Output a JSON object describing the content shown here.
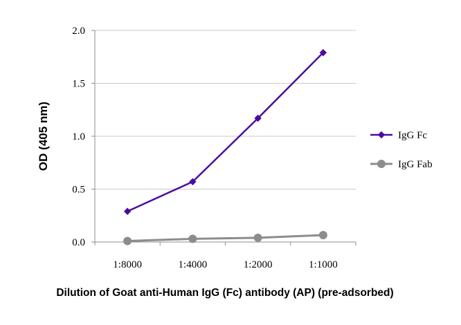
{
  "chart_data": {
    "type": "line",
    "title": "",
    "xlabel": "Dilution of Goat anti-Human IgG (Fc) antibody (AP) (pre-adsorbed)",
    "ylabel": "OD (405 nm)",
    "categories": [
      "1:8000",
      "1:4000",
      "1:2000",
      "1:1000"
    ],
    "ylim": [
      0,
      2.0
    ],
    "yticks": [
      "0.0",
      "0.5",
      "1.0",
      "1.5",
      "2.0"
    ],
    "ytick_values": [
      0,
      0.5,
      1.0,
      1.5,
      2.0
    ],
    "grid": true,
    "legend_position": "right",
    "series": [
      {
        "name": "IgG Fc",
        "values": [
          0.29,
          0.57,
          1.17,
          1.79
        ],
        "color": "#4b0c9e",
        "marker": "diamond"
      },
      {
        "name": "IgG Fab",
        "values": [
          0.01,
          0.03,
          0.04,
          0.065
        ],
        "color": "#8c8c8c",
        "marker": "circle"
      }
    ]
  }
}
